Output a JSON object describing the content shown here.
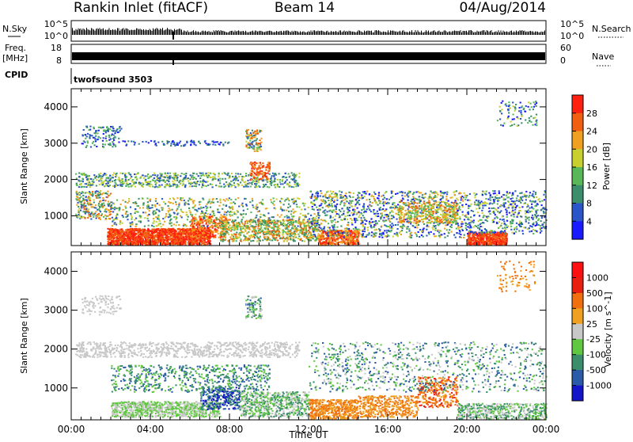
{
  "header": {
    "title": "Rankin Inlet (fitACF)",
    "beam": "Beam 14",
    "date": "04/Aug/2014"
  },
  "top_panels": {
    "nsky_label": "N.Sky",
    "nsearch_label": "N.Search",
    "nsky_ticks": [
      "10^5",
      "10^0"
    ],
    "nsearch_ticks": [
      "10^5",
      "10^0"
    ],
    "freq_label_line1": "Freq.",
    "freq_label_line2": "[MHz]",
    "freq_ticks": [
      "18",
      "8"
    ],
    "nave_label": "Nave",
    "nave_ticks": [
      "60",
      "0"
    ],
    "cpid_label": "CPID",
    "cpid_value": "twofsound 3503"
  },
  "chart_data": [
    {
      "type": "heatmap",
      "title": "",
      "xlabel": "",
      "ylabel": "Slant Range [km]",
      "x_ticks": [
        "00:00",
        "04:00",
        "08:00",
        "12:00",
        "16:00",
        "20:00",
        "00:00"
      ],
      "y_ticks": [
        1000,
        2000,
        3000,
        4000
      ],
      "ylim": [
        180,
        4500
      ],
      "colorbar": {
        "label": "Power [dB]",
        "ticks": [
          "4",
          "8",
          "12",
          "16",
          "20",
          "24",
          "28"
        ],
        "colors": [
          "#1a1aff",
          "#2a55c8",
          "#3a8e6c",
          "#58b858",
          "#c8d030",
          "#f0a020",
          "#f06010",
          "#ff2010"
        ]
      }
    },
    {
      "type": "heatmap",
      "title": "",
      "xlabel": "Time UT",
      "ylabel": "Slant Range [km]",
      "x_ticks": [
        "00:00",
        "04:00",
        "08:00",
        "12:00",
        "16:00",
        "20:00",
        "00:00"
      ],
      "y_ticks": [
        1000,
        2000,
        3000,
        4000
      ],
      "ylim": [
        180,
        4500
      ],
      "colorbar": {
        "label": "Velocity [m s^-1]",
        "ticks": [
          "1000",
          "500",
          "100",
          "25",
          "-25",
          "-100",
          "-500",
          "-1000"
        ],
        "colors": [
          "#1414c8",
          "#2a5aa8",
          "#3a8e6c",
          "#60c840",
          "#c8c8c8",
          "#f0a020",
          "#f07010",
          "#e82010",
          "#ff1010"
        ]
      }
    }
  ]
}
